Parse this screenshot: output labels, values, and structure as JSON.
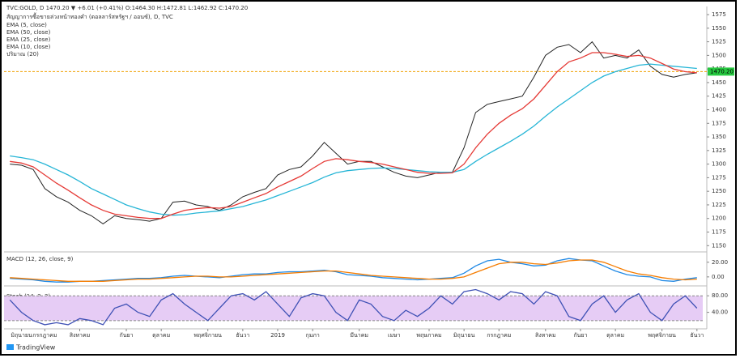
{
  "chart_data": [
    {
      "type": "line",
      "title": "TVC:GOLD, D  1470.20 ▼ +6.01 (+0.41%)  O:1464.30  H:1472.81  L:1462.92  C:1470.20",
      "subtitle": "สัญญาการซื้อขายล่วงหน้าทองคำ (ดอลลาร์สหรัฐฯ / ออนซ์), D, TVC",
      "indicators": [
        "EMA (5, close)",
        "EMA (10, close)",
        "ปริมาณ (20)"
      ],
      "values": [
        1300,
        1298,
        1290,
        1255,
        1240,
        1230,
        1215,
        1205,
        1190,
        1205,
        1200,
        1198,
        1195,
        1200,
        1230,
        1232,
        1225,
        1222,
        1215,
        1225,
        1240,
        1248,
        1255,
        1280,
        1290,
        1295,
        1315,
        1340,
        1320,
        1300,
        1305,
        1305,
        1295,
        1285,
        1278,
        1275,
        1280,
        1285,
        1285,
        1330,
        1395,
        1410,
        1415,
        1420,
        1425,
        1460,
        1500,
        1515,
        1520,
        1505,
        1525,
        1495,
        1500,
        1495,
        1510,
        1480,
        1465,
        1460,
        1465,
        1468
      ],
      "color": "#222222",
      "series": [
        {
          "name": "EMA (50, close)",
          "color": "#26b5d6",
          "values": [
            1315,
            1312,
            1308,
            1300,
            1290,
            1280,
            1268,
            1255,
            1245,
            1235,
            1225,
            1218,
            1212,
            1208,
            1206,
            1207,
            1210,
            1212,
            1214,
            1218,
            1222,
            1228,
            1234,
            1242,
            1250,
            1258,
            1266,
            1276,
            1284,
            1288,
            1290,
            1292,
            1293,
            1292,
            1290,
            1288,
            1286,
            1285,
            1285,
            1290,
            1305,
            1318,
            1330,
            1342,
            1355,
            1370,
            1388,
            1405,
            1420,
            1435,
            1450,
            1462,
            1470,
            1476,
            1482,
            1484,
            1482,
            1480,
            1478,
            1476
          ]
        },
        {
          "name": "EMA (25, close)",
          "color": "#e53935",
          "values": [
            1305,
            1302,
            1295,
            1280,
            1265,
            1252,
            1238,
            1225,
            1215,
            1208,
            1205,
            1202,
            1200,
            1200,
            1208,
            1215,
            1218,
            1220,
            1219,
            1222,
            1230,
            1238,
            1246,
            1258,
            1268,
            1278,
            1292,
            1305,
            1310,
            1308,
            1305,
            1303,
            1300,
            1295,
            1290,
            1285,
            1283,
            1283,
            1284,
            1300,
            1330,
            1355,
            1375,
            1390,
            1402,
            1420,
            1445,
            1470,
            1488,
            1495,
            1505,
            1505,
            1502,
            1498,
            1500,
            1495,
            1485,
            1475,
            1470,
            1468
          ]
        }
      ],
      "last_price": {
        "value": 1470.2,
        "label": "1470.20"
      },
      "ylim": [
        1140,
        1584
      ],
      "yticks": [
        1150,
        1175,
        1200,
        1225,
        1250,
        1275,
        1300,
        1325,
        1350,
        1375,
        1400,
        1425,
        1450,
        1475,
        1500,
        1525,
        1550,
        1575
      ]
    },
    {
      "type": "line",
      "title": "MACD (12, 26, close, 9)",
      "series": [
        {
          "color": "#1e88e5",
          "values": [
            -2,
            -3,
            -4,
            -6,
            -7,
            -7,
            -6,
            -6,
            -5,
            -4,
            -3,
            -2,
            -2,
            -1,
            1,
            2,
            1,
            0,
            -1,
            1,
            3,
            4,
            4,
            6,
            7,
            7,
            8,
            9,
            7,
            3,
            2,
            1,
            -1,
            -2,
            -3,
            -4,
            -3,
            -2,
            -1,
            5,
            15,
            22,
            24,
            20,
            18,
            15,
            16,
            22,
            25,
            23,
            22,
            15,
            8,
            3,
            1,
            0,
            -5,
            -6,
            -3,
            -1
          ]
        },
        {
          "color": "#f57c00",
          "values": [
            -1,
            -2,
            -3,
            -4,
            -5,
            -6,
            -6,
            -6,
            -6,
            -5,
            -4,
            -3,
            -3,
            -2,
            -1,
            0,
            1,
            1,
            0,
            0,
            1,
            2,
            3,
            4,
            5,
            6,
            7,
            8,
            8,
            6,
            4,
            2,
            1,
            0,
            -1,
            -2,
            -3,
            -3,
            -2,
            0,
            6,
            12,
            18,
            20,
            20,
            18,
            17,
            19,
            22,
            23,
            23,
            20,
            14,
            8,
            4,
            2,
            -1,
            -3,
            -4,
            -3
          ]
        }
      ],
      "ylim": [
        -9,
        33
      ],
      "yticks": [
        {
          "value": 20,
          "label": "20.00"
        },
        {
          "value": 0,
          "label": "0.00"
        }
      ]
    },
    {
      "type": "line",
      "title": "Stoch (14, 3, 3)",
      "series": [
        {
          "color": "#3f51b5",
          "values": [
            70,
            40,
            20,
            10,
            15,
            10,
            25,
            20,
            10,
            50,
            60,
            40,
            30,
            70,
            85,
            60,
            40,
            20,
            50,
            80,
            85,
            70,
            90,
            60,
            30,
            75,
            85,
            80,
            40,
            20,
            70,
            60,
            30,
            20,
            45,
            30,
            50,
            80,
            60,
            90,
            95,
            85,
            70,
            90,
            85,
            60,
            90,
            80,
            30,
            20,
            60,
            80,
            40,
            70,
            85,
            40,
            20,
            60,
            80,
            50
          ]
        }
      ],
      "band": [
        20,
        80
      ],
      "ylim": [
        2,
        98
      ],
      "yticks": [
        {
          "value": 80,
          "label": "80.00"
        },
        {
          "value": 40,
          "label": "40.00"
        }
      ],
      "categories": [
        null,
        "มิถุนายน",
        null,
        "กรกฎาคม",
        null,
        null,
        "สิงหาคม",
        null,
        null,
        null,
        "กันยา",
        null,
        null,
        "ตุลาคม",
        null,
        null,
        null,
        "พฤศจิกายน",
        null,
        null,
        "ธันวา",
        null,
        null,
        "2019",
        null,
        null,
        "กุมภา",
        null,
        null,
        null,
        "มีนาคม",
        null,
        null,
        "เมษา",
        null,
        null,
        "พฤษภาคม",
        null,
        null,
        "มิถุนายน",
        null,
        null,
        "กรกฎาคม",
        null,
        null,
        null,
        "สิงหาคม",
        null,
        null,
        "กันยา",
        null,
        null,
        "ตุลาคม",
        null,
        null,
        null,
        "พฤศจิกายน",
        null,
        null,
        "ธันวา"
      ]
    }
  ],
  "footer": {
    "brand": "TradingView"
  }
}
